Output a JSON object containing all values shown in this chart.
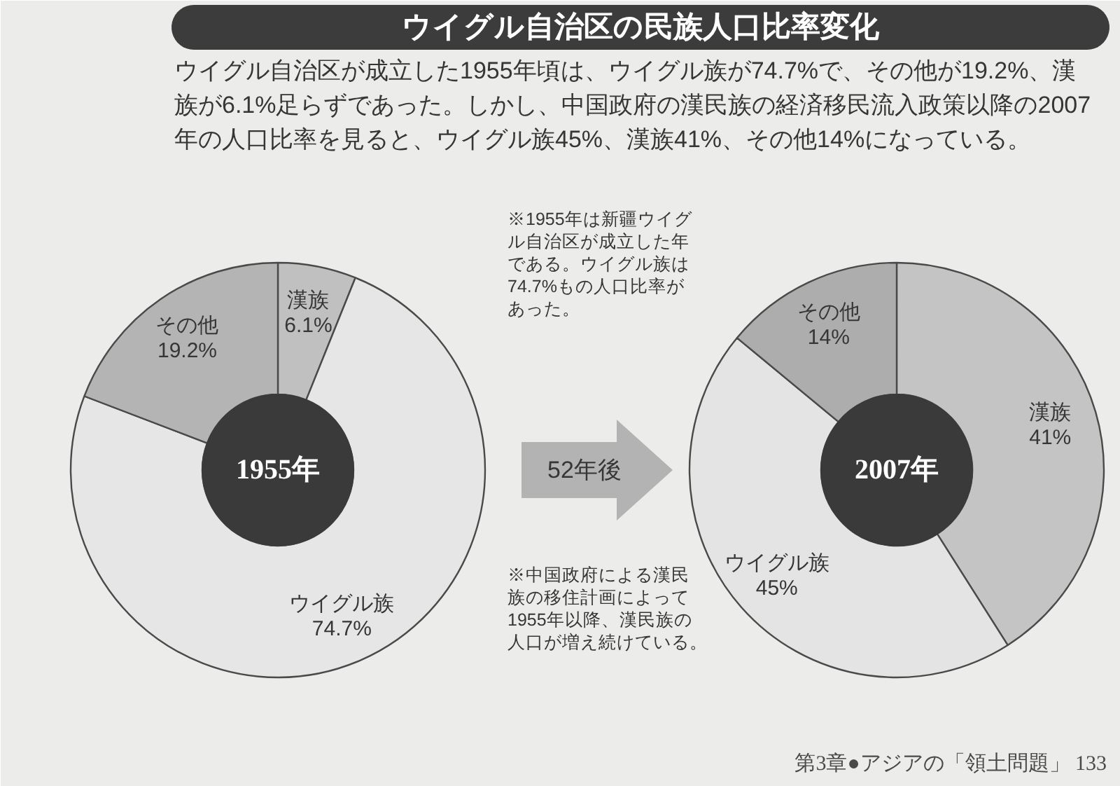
{
  "chart_data": [
    {
      "type": "other",
      "title": "ウイグル自治区の民族人口比率変化",
      "subtitle": "ウイグル自治区が成立した1955年頃は、ウイグル族が74.7%で、その他が19.2%、漢族が6.1%足らずであった。しかし、中国政府の漢民族の経済移民流入政策以降の2007年の人口比率を見ると、ウイグル族45%、漢族41%、その他14%になっている。",
      "annotations": [
        "※1955年は新疆ウイグル自治区が成立した年である。ウイグル族は74.7%もの人口比率があった。",
        "52年後",
        "※中国政府による漢民族の移住計画によって1955年以降、漢民族の人口が増え続けている。",
        "第3章●アジアの「領土問題」 133"
      ]
    },
    {
      "type": "donut",
      "title": "1955年",
      "categories": [
        "漢族",
        "ウイグル族",
        "その他"
      ],
      "values": [
        6.1,
        74.7,
        19.2
      ],
      "colors": [
        "#c0c0c0",
        "#e6e6e6",
        "#b4b4b4"
      ],
      "value_labels": [
        "6.1%",
        "74.7%",
        "19.2%"
      ]
    },
    {
      "type": "donut",
      "title": "2007年",
      "categories": [
        "漢族",
        "ウイグル族",
        "その他"
      ],
      "values": [
        41,
        45,
        14
      ],
      "colors": [
        "#c4c4c4",
        "#e4e4e4",
        "#adadad"
      ],
      "value_labels": [
        "41%",
        "45%",
        "14%"
      ]
    }
  ]
}
